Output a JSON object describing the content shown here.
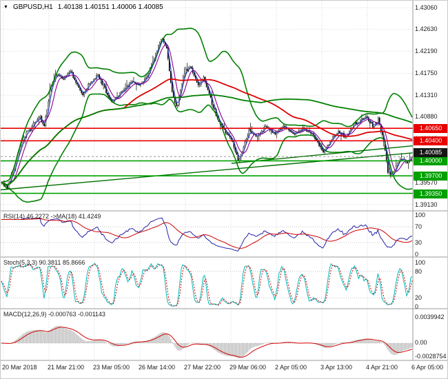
{
  "header": {
    "dropdown_icon": "▼",
    "symbol_timeframe": "GBPUSD,H1",
    "ohlc": "1.40138 1.40151 1.40006 1.40085"
  },
  "indicator_labels": {
    "rsi": "RSI(14) 46.2272  ->MA(18) 41.4249",
    "stoch": "Stoch(5,3,3) 90.3811 85.8666",
    "macd": "MACD(12,26,9) -0.000763 -0.001143"
  },
  "time_axis": {
    "labels": [
      "20 Mar 2018",
      "21 Mar 21:00",
      "23 Mar 05:00",
      "26 Mar 14:00",
      "27 Mar 22:00",
      "29 Mar 06:00",
      "2 Apr 05:00",
      "3 Apr 13:00",
      "4 Apr 21:00",
      "6 Apr 05:00"
    ]
  },
  "chart_data": [
    {
      "type": "candlestick",
      "title": "GBPUSD,H1",
      "panel": "price",
      "ohlc_display": {
        "open": "1.40138",
        "high": "1.40151",
        "low": "1.40006",
        "close": "1.40085"
      },
      "ylim": [
        1.39,
        1.432
      ],
      "y_ticks": [
        {
          "label": "1.43060",
          "value": 1.4306
        },
        {
          "label": "1.42630",
          "value": 1.4263
        },
        {
          "label": "1.42190",
          "value": 1.4219
        },
        {
          "label": "1.41750",
          "value": 1.4175
        },
        {
          "label": "1.41310",
          "value": 1.4131
        },
        {
          "label": "1.40880",
          "value": 1.4088
        },
        {
          "label": "1.40440",
          "value": 1.4044
        },
        {
          "label": "1.40000",
          "value": 1.4
        },
        {
          "label": "1.39570",
          "value": 1.3957
        },
        {
          "label": "1.39130",
          "value": 1.3913
        }
      ],
      "bars": 300,
      "price_path": [
        [
          0.0,
          1.3958
        ],
        [
          0.013,
          1.3948
        ],
        [
          0.03,
          1.3985
        ],
        [
          0.05,
          1.4042
        ],
        [
          0.075,
          1.407
        ],
        [
          0.092,
          1.4088
        ],
        [
          0.104,
          1.4068
        ],
        [
          0.117,
          1.414
        ],
        [
          0.134,
          1.4175
        ],
        [
          0.15,
          1.4163
        ],
        [
          0.167,
          1.4182
        ],
        [
          0.184,
          1.415
        ],
        [
          0.197,
          1.4132
        ],
        [
          0.214,
          1.4155
        ],
        [
          0.234,
          1.4172
        ],
        [
          0.251,
          1.4145
        ],
        [
          0.268,
          1.4118
        ],
        [
          0.284,
          1.413
        ],
        [
          0.301,
          1.4145
        ],
        [
          0.318,
          1.416
        ],
        [
          0.334,
          1.415
        ],
        [
          0.354,
          1.417
        ],
        [
          0.376,
          1.4215
        ],
        [
          0.39,
          1.4248
        ],
        [
          0.401,
          1.4225
        ],
        [
          0.415,
          1.4135
        ],
        [
          0.426,
          1.4105
        ],
        [
          0.443,
          1.4175
        ],
        [
          0.46,
          1.419
        ],
        [
          0.477,
          1.415
        ],
        [
          0.493,
          1.4165
        ],
        [
          0.51,
          1.412
        ],
        [
          0.527,
          1.408
        ],
        [
          0.543,
          1.406
        ],
        [
          0.56,
          1.4042
        ],
        [
          0.577,
          1.3998
        ],
        [
          0.589,
          1.403
        ],
        [
          0.602,
          1.406
        ],
        [
          0.622,
          1.4048
        ],
        [
          0.644,
          1.407
        ],
        [
          0.665,
          1.4055
        ],
        [
          0.686,
          1.4068
        ],
        [
          0.711,
          1.4052
        ],
        [
          0.736,
          1.4065
        ],
        [
          0.761,
          1.4048
        ],
        [
          0.783,
          1.4015
        ],
        [
          0.799,
          1.404
        ],
        [
          0.819,
          1.4058
        ],
        [
          0.839,
          1.4048
        ],
        [
          0.861,
          1.4075
        ],
        [
          0.883,
          1.4088
        ],
        [
          0.903,
          1.4072
        ],
        [
          0.916,
          1.4082
        ],
        [
          0.93,
          1.404
        ],
        [
          0.94,
          1.3978
        ],
        [
          0.95,
          1.3968
        ],
        [
          0.963,
          1.3995
        ],
        [
          0.977,
          1.4008
        ],
        [
          0.987,
          1.3996
        ],
        [
          1.0,
          1.40085
        ]
      ],
      "overlays": [
        {
          "name": "bollinger-bands",
          "type": "bollinger",
          "window": 30,
          "mult": 2,
          "color": "#008000",
          "width": 1.6
        },
        {
          "name": "ma-fast-blue",
          "type": "sma",
          "window": 4,
          "color": "#2039c8",
          "width": 1
        },
        {
          "name": "ma-fast-purple",
          "type": "sma",
          "window": 8,
          "color": "#8b008b",
          "width": 1.1
        },
        {
          "name": "ma-slow-red",
          "type": "sma",
          "window": 90,
          "color": "#dd0000",
          "width": 1.8
        },
        {
          "name": "ma-slow-green",
          "type": "sma",
          "window": 190,
          "color": "#008000",
          "width": 1.8
        }
      ],
      "trendlines": [
        {
          "from": [
            0.0,
            1.3942
          ],
          "to": [
            1.0,
            1.4016
          ],
          "color": "#007000",
          "width": 1.4
        },
        {
          "from": [
            0.56,
            1.3995
          ],
          "to": [
            1.0,
            1.403
          ],
          "color": "#007000",
          "width": 1.4
        }
      ],
      "levels": [
        {
          "label": "1.40650",
          "value": 1.4065,
          "color": "#e80000",
          "role": "resistance"
        },
        {
          "label": "1.40400",
          "value": 1.404,
          "color": "#e80000",
          "role": "resistance"
        },
        {
          "label": "1.40000",
          "value": 1.4,
          "color": "#00a000",
          "role": "support"
        },
        {
          "label": "1.39700",
          "value": 1.397,
          "color": "#00a000",
          "role": "support"
        },
        {
          "label": "1.39350",
          "value": 1.3935,
          "color": "#00a000",
          "role": "support"
        }
      ],
      "current_price": {
        "label": "1.40085",
        "value": 1.40085,
        "bg": "#151515"
      },
      "candle_colors": {
        "bull_fill": "#ffffff",
        "bear_fill": "#000000",
        "outline": "#000000"
      }
    },
    {
      "type": "line",
      "panel": "rsi",
      "name": "RSI",
      "params": "(14)",
      "value": 46.2272,
      "ma_period": 18,
      "ma_value": 41.4249,
      "ylim": [
        0,
        100
      ],
      "level_lines": [
        70,
        30
      ],
      "y_ticks": [
        {
          "label": "100",
          "value": 100
        },
        {
          "label": "70",
          "value": 70
        },
        {
          "label": "30",
          "value": 30
        },
        {
          "label": "0",
          "value": 0
        }
      ],
      "colors": {
        "main": "#2222aa",
        "ma": "#cc0000"
      }
    },
    {
      "type": "line",
      "panel": "stoch",
      "name": "Stochastic",
      "params": "(5,3,3)",
      "k_value": 90.3811,
      "d_value": 85.8666,
      "ylim": [
        0,
        100
      ],
      "level_lines": [
        80,
        20
      ],
      "y_ticks": [
        {
          "label": "100",
          "value": 100
        },
        {
          "label": "80",
          "value": 80
        },
        {
          "label": "20",
          "value": 20
        },
        {
          "label": "0",
          "value": 0
        }
      ],
      "colors": {
        "k": "#00b8b8",
        "d": "#d00000"
      }
    },
    {
      "type": "macd",
      "panel": "macd",
      "name": "MACD",
      "params": "(12,26,9)",
      "macd_value": -0.000763,
      "signal_value": -0.001143,
      "y_ticks": [
        {
          "label": "0.0039942",
          "pos": "top"
        },
        {
          "label": "0.00",
          "pos": "zero"
        },
        {
          "label": "-0.0028754",
          "pos": "bottom"
        }
      ],
      "colors": {
        "hist": "#b4b4b4",
        "signal": "#d00000"
      }
    }
  ]
}
